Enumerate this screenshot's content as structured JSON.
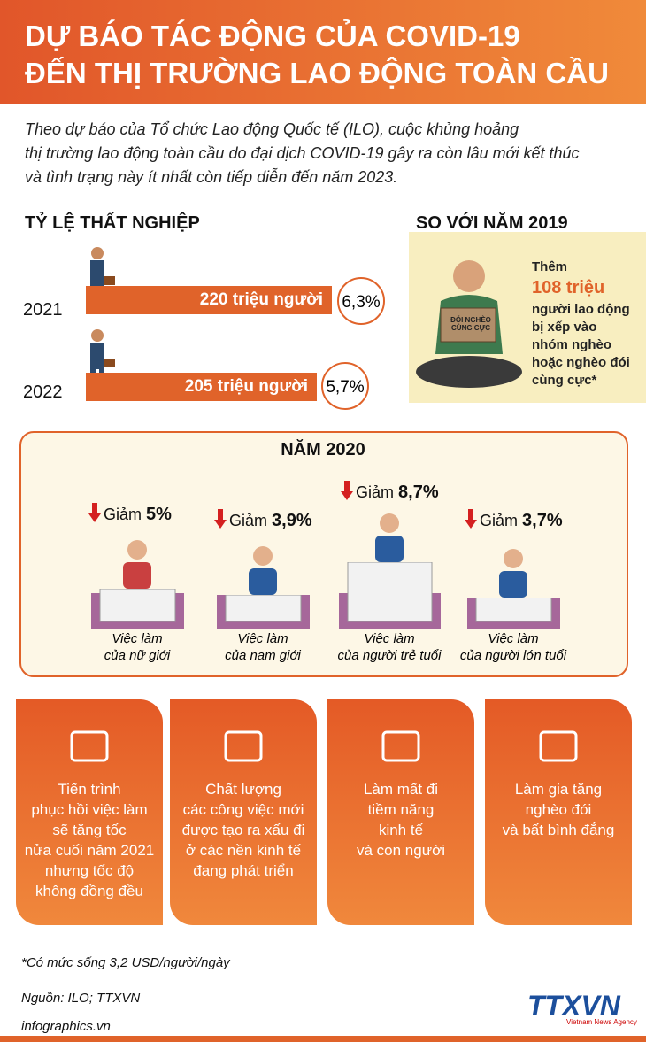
{
  "header": {
    "title_lines": [
      "DỰ BÁO TÁC ĐỘNG CỦA COVID-19",
      "ĐẾN THỊ TRƯỜNG LAO ĐỘNG TOÀN CẦU"
    ]
  },
  "intro": [
    "Theo dự báo của Tổ chức Lao động Quốc tế (ILO), cuộc khủng hoảng",
    "thị trường lao động toàn cầu do đại dịch COVID-19 gây ra còn lâu mới kết thúc",
    "và tình trạng này ít nhất còn tiếp diễn đến năm 2023."
  ],
  "unemployment": {
    "title": "TỶ LỆ THẤT NGHIỆP",
    "rows": [
      {
        "year": "2021",
        "people": "220 triệu người",
        "rate": "6,3%"
      },
      {
        "year": "2022",
        "people": "205 triệu người",
        "rate": "5,7%"
      }
    ]
  },
  "comparison": {
    "title": "SO VỚI NĂM 2019",
    "sign": "ĐÓI NGHÈO CÙNG CỰC",
    "lead": "Thêm",
    "highlight": "108 triệu",
    "lines": [
      "người lao động",
      "bị xếp vào",
      "nhóm nghèo",
      "hoặc nghèo đói",
      "cùng cực*"
    ]
  },
  "year2020": {
    "title": "NĂM 2020",
    "items": [
      {
        "change_label": "Giảm",
        "change": "5%",
        "caption": [
          "Việc làm",
          "của nữ giới"
        ]
      },
      {
        "change_label": "Giảm",
        "change": "3,9%",
        "caption": [
          "Việc làm",
          "của nam giới"
        ]
      },
      {
        "change_label": "Giảm",
        "change": "8,7%",
        "caption": [
          "Việc làm",
          "của người trẻ tuổi"
        ]
      },
      {
        "change_label": "Giảm",
        "change": "3,7%",
        "caption": [
          "Việc làm",
          "của người lớn tuổi"
        ]
      }
    ]
  },
  "impacts": [
    {
      "lines": [
        "Tiến trình",
        "phục hồi việc làm",
        "sẽ tăng tốc",
        "nửa cuối năm 2021",
        "nhưng tốc độ",
        "không đồng đều"
      ]
    },
    {
      "lines": [
        "Chất lượng",
        "các công việc mới",
        "được tạo ra xấu đi",
        "ở các nền kinh tế",
        "đang phát triển"
      ]
    },
    {
      "lines": [
        "Làm mất đi",
        "tiềm năng",
        "kinh tế",
        "và con người"
      ]
    },
    {
      "lines": [
        "Làm gia tăng",
        "nghèo đói",
        "và bất bình đẳng"
      ]
    }
  ],
  "footnote": "*Có mức sống 3,2 USD/người/ngày",
  "source": "Nguồn: ILO; TTXVN",
  "site": "infographics.vn",
  "logo": "TTXVN",
  "logo_sub": "Vietnam News Agency"
}
